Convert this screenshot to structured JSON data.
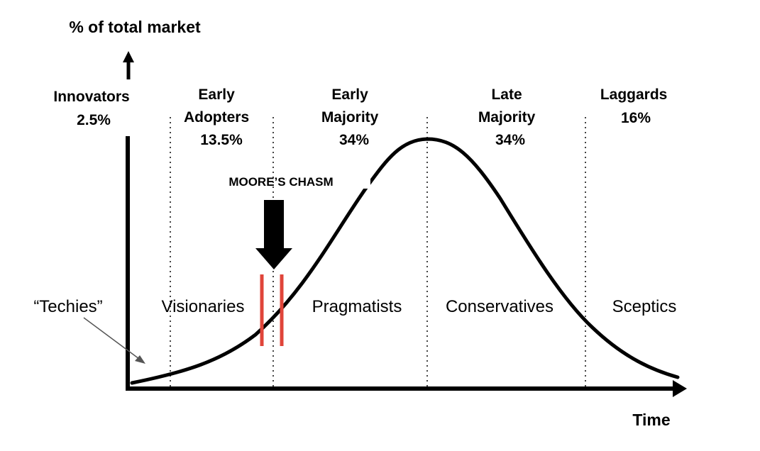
{
  "y_axis_label": "% of total market",
  "x_axis_label": "Time",
  "categories": [
    {
      "lines": [
        "Innovators",
        "2.5%"
      ],
      "name": "innovators"
    },
    {
      "lines": [
        "Early",
        "Adopters",
        "13.5%"
      ],
      "name": "early-adopters"
    },
    {
      "lines": [
        "Early",
        "Majority",
        "34%"
      ],
      "name": "early-majority"
    },
    {
      "lines": [
        "Late",
        "Majority",
        "34%"
      ],
      "name": "late-majority"
    },
    {
      "lines": [
        "Laggards",
        "16%"
      ],
      "name": "laggards"
    }
  ],
  "segments": [
    "“Techies”",
    "Visionaries",
    "Pragmatists",
    "Conservatives",
    "Sceptics"
  ],
  "chasm_label": "MOORE’S CHASM",
  "colors": {
    "curve": "#000000",
    "chasm_lines": "#e0453a",
    "divider": "#444444"
  }
}
